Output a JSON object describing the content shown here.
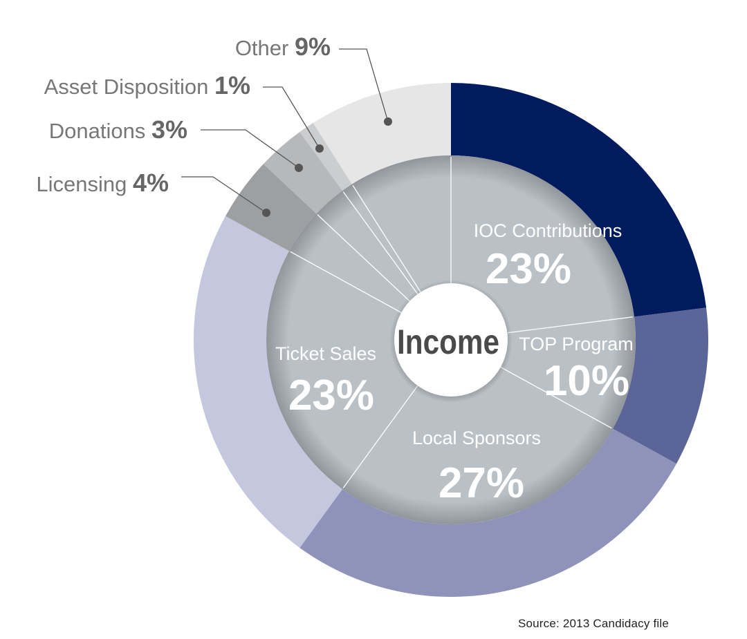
{
  "chart_data": {
    "type": "pie",
    "center_label": "Income",
    "source": "Source: 2013 Candidacy file",
    "slices": [
      {
        "name": "IOC Contributions",
        "value": 23,
        "value_label": "23%",
        "color": "#001b5e"
      },
      {
        "name": "TOP Program",
        "value": 10,
        "value_label": "10%",
        "color": "#5b6597"
      },
      {
        "name": "Local Sponsors",
        "value": 27,
        "value_label": "27%",
        "color": "#8f93b9"
      },
      {
        "name": "Ticket Sales",
        "value": 23,
        "value_label": "23%",
        "color": "#c4c7dd"
      },
      {
        "name": "Licensing",
        "value": 4,
        "value_label": "4%",
        "color": "#9d9fa1"
      },
      {
        "name": "Donations",
        "value": 3,
        "value_label": "3%",
        "color": "#b7b8ba"
      },
      {
        "name": "Asset Disposition",
        "value": 1,
        "value_label": "1%",
        "color": "#cccdce"
      },
      {
        "name": "Other",
        "value": 9,
        "value_label": "9%",
        "color": "#e6e6e6"
      }
    ],
    "inner_fill": "#b9c0c6",
    "label_text_color": "#ffffff",
    "callout_text_color": "#777777"
  }
}
